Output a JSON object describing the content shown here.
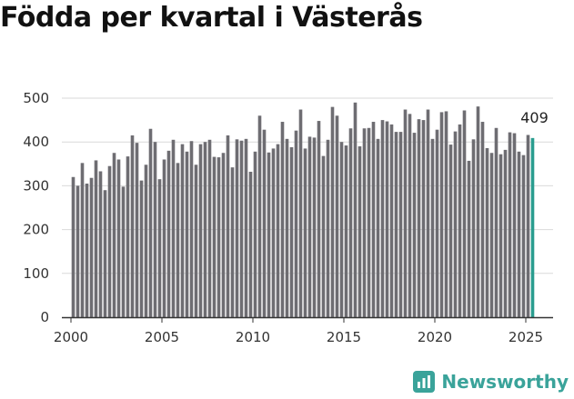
{
  "title": "Födda per kvartal i Västerås",
  "brand": {
    "name": "Newsworthy",
    "icon": "newsworthy-logo-icon",
    "color": "#3aa39a"
  },
  "colors": {
    "bar": "#6e6d72",
    "highlight": "#2a9d8f",
    "grid": "#d9d9d9",
    "axis": "#333333"
  },
  "chart_data": {
    "type": "bar",
    "title": "Födda per kvartal i Västerås",
    "xlabel": "",
    "ylabel": "",
    "ylim": [
      0,
      500
    ],
    "yticks": [
      0,
      100,
      200,
      300,
      400,
      500
    ],
    "xticks": [
      2000,
      2005,
      2010,
      2015,
      2020,
      2025
    ],
    "xlim": [
      1999.5,
      2026.5
    ],
    "grid": true,
    "last_label": "409",
    "x": [
      2000.125,
      2000.375,
      2000.625,
      2000.875,
      2001.125,
      2001.375,
      2001.625,
      2001.875,
      2002.125,
      2002.375,
      2002.625,
      2002.875,
      2003.125,
      2003.375,
      2003.625,
      2003.875,
      2004.125,
      2004.375,
      2004.625,
      2004.875,
      2005.125,
      2005.375,
      2005.625,
      2005.875,
      2006.125,
      2006.375,
      2006.625,
      2006.875,
      2007.125,
      2007.375,
      2007.625,
      2007.875,
      2008.125,
      2008.375,
      2008.625,
      2008.875,
      2009.125,
      2009.375,
      2009.625,
      2009.875,
      2010.125,
      2010.375,
      2010.625,
      2010.875,
      2011.125,
      2011.375,
      2011.625,
      2011.875,
      2012.125,
      2012.375,
      2012.625,
      2012.875,
      2013.125,
      2013.375,
      2013.625,
      2013.875,
      2014.125,
      2014.375,
      2014.625,
      2014.875,
      2015.125,
      2015.375,
      2015.625,
      2015.875,
      2016.125,
      2016.375,
      2016.625,
      2016.875,
      2017.125,
      2017.375,
      2017.625,
      2017.875,
      2018.125,
      2018.375,
      2018.625,
      2018.875,
      2019.125,
      2019.375,
      2019.625,
      2019.875,
      2020.125,
      2020.375,
      2020.625,
      2020.875,
      2021.125,
      2021.375,
      2021.625,
      2021.875,
      2022.125,
      2022.375,
      2022.625,
      2022.875,
      2023.125,
      2023.375,
      2023.625,
      2023.875,
      2024.125,
      2024.375,
      2024.625,
      2024.875,
      2025.125,
      2025.375
    ],
    "values": [
      320,
      300,
      352,
      305,
      318,
      358,
      333,
      290,
      345,
      375,
      360,
      298,
      367,
      415,
      398,
      312,
      348,
      430,
      400,
      315,
      360,
      380,
      405,
      352,
      395,
      378,
      402,
      348,
      395,
      400,
      405,
      366,
      365,
      375,
      415,
      342,
      406,
      403,
      407,
      332,
      378,
      460,
      428,
      376,
      385,
      395,
      446,
      407,
      388,
      426,
      474,
      385,
      412,
      410,
      448,
      368,
      405,
      480,
      460,
      400,
      392,
      431,
      490,
      390,
      431,
      432,
      446,
      407,
      450,
      447,
      440,
      423,
      423,
      474,
      464,
      421,
      452,
      450,
      474,
      407,
      428,
      468,
      470,
      394,
      424,
      440,
      472,
      357,
      406,
      481,
      446,
      386,
      375,
      432,
      372,
      382,
      422,
      420,
      378,
      370,
      416,
      409
    ]
  }
}
